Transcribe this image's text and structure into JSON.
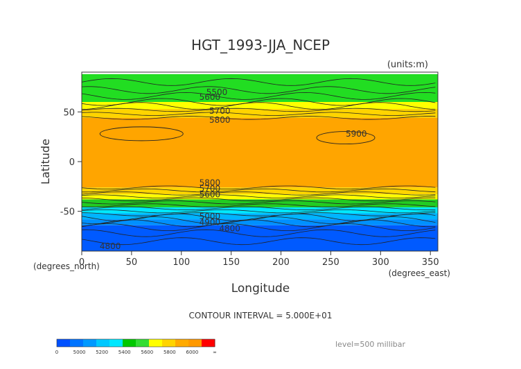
{
  "chart_data": {
    "type": "heatmap",
    "title": "HGT_1993-JJA_NCEP",
    "units": "(units:m)",
    "xlabel": "Longitude",
    "ylabel": "Latitude",
    "x_unit_label": "(degrees_east)",
    "y_unit_label": "(degrees_north)",
    "xlim": [
      0,
      357.5
    ],
    "ylim": [
      -90,
      90
    ],
    "x_ticks": [
      0,
      50,
      100,
      150,
      200,
      250,
      300,
      350
    ],
    "y_ticks": [
      50,
      0,
      -50
    ],
    "contour_interval_text": "CONTOUR INTERVAL = 5.000E+01",
    "level_text": "level=500 millibar",
    "colorbar": {
      "tick_labels": [
        "0",
        "5000",
        "5200",
        "5400",
        "5600",
        "5800",
        "6000",
        "∞"
      ],
      "colors": [
        "#0050ff",
        "#0074ff",
        "#0099ff",
        "#00c8ff",
        "#00e8ff",
        "#00c800",
        "#33dd33",
        "#ffff00",
        "#ffd400",
        "#ffaa00",
        "#ff9900",
        "#ff0000"
      ]
    },
    "bands": [
      {
        "lat_top": 90,
        "lat_bottom": 88,
        "color": "#ffffff"
      },
      {
        "lat_top": 88,
        "lat_bottom": 60,
        "color": "#22dd22"
      },
      {
        "lat_top": 60,
        "lat_bottom": 53,
        "color": "#ffff00"
      },
      {
        "lat_top": 53,
        "lat_bottom": 44,
        "color": "#ffd400"
      },
      {
        "lat_top": 44,
        "lat_bottom": -26,
        "color": "#ffa500"
      },
      {
        "lat_top": -26,
        "lat_bottom": -33,
        "color": "#ffd400"
      },
      {
        "lat_top": -33,
        "lat_bottom": -38,
        "color": "#ffff00"
      },
      {
        "lat_top": -38,
        "lat_bottom": -46,
        "color": "#22cc22"
      },
      {
        "lat_top": -46,
        "lat_bottom": -52,
        "color": "#00e8ff"
      },
      {
        "lat_top": -52,
        "lat_bottom": -58,
        "color": "#00b4ff"
      },
      {
        "lat_top": -58,
        "lat_bottom": -64,
        "color": "#0090ff"
      },
      {
        "lat_top": -64,
        "lat_bottom": -90,
        "color": "#005aff"
      }
    ],
    "contour_labels": [
      {
        "text": "5500",
        "lon": 125,
        "lat": 67
      },
      {
        "text": "5600",
        "lon": 118,
        "lat": 62
      },
      {
        "text": "5700",
        "lon": 128,
        "lat": 48
      },
      {
        "text": "5800",
        "lon": 128,
        "lat": 39
      },
      {
        "text": "5900",
        "lon": 265,
        "lat": 25
      },
      {
        "text": "5800",
        "lon": 118,
        "lat": -24
      },
      {
        "text": "5700",
        "lon": 118,
        "lat": -30
      },
      {
        "text": "5600",
        "lon": 118,
        "lat": -36
      },
      {
        "text": "5000",
        "lon": 118,
        "lat": -58
      },
      {
        "text": "4900",
        "lon": 118,
        "lat": -64
      },
      {
        "text": "4800",
        "lon": 138,
        "lat": -70
      },
      {
        "text": "4800",
        "lon": 18,
        "lat": -88
      }
    ]
  }
}
